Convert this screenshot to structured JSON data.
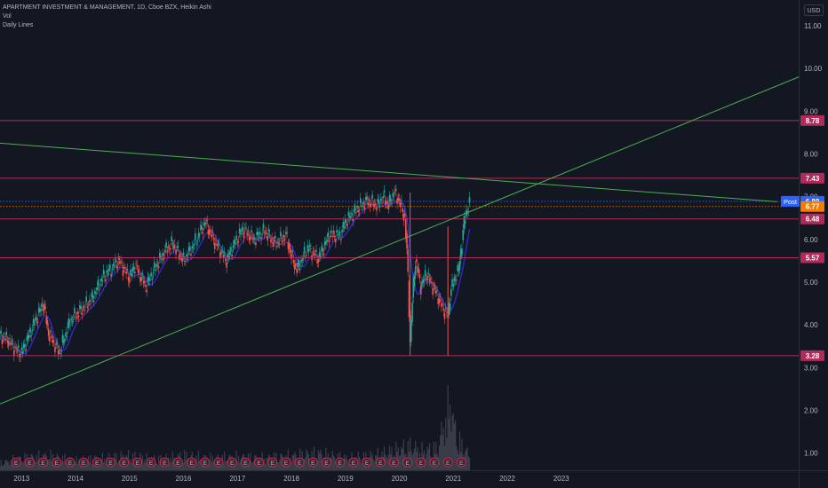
{
  "header": {
    "title": "APARTMENT INVESTMENT & MANAGEMENT, 1D, Cboe BZX, Heikin Ashi",
    "indicator_vol": "Vol",
    "indicator_lines": "Daily Lines",
    "currency": "USD"
  },
  "chart_data": {
    "type": "line",
    "chart_style": "Heikin Ashi candles with moving average and volume histogram",
    "y_axis": {
      "ticks": [
        "11.00",
        "10.00",
        "9.00",
        "8.00",
        "7.00",
        "6.00",
        "5.00",
        "4.00",
        "3.00",
        "2.00",
        "1.00"
      ],
      "range": [
        0.6,
        11.6
      ],
      "position": "right"
    },
    "x_axis": {
      "ticks": [
        "2013",
        "2014",
        "2015",
        "2016",
        "2017",
        "2018",
        "2019",
        "2020",
        "2021",
        "2022",
        "2023"
      ],
      "range_years": [
        2012.6,
        2027.4
      ]
    },
    "price_series": {
      "name": "",
      "x": [
        2012.6,
        2012.75,
        2012.9,
        2013.0,
        2013.2,
        2013.4,
        2013.5,
        2013.7,
        2013.9,
        2014.1,
        2014.3,
        2014.5,
        2014.8,
        2015.0,
        2015.1,
        2015.3,
        2015.5,
        2015.7,
        2015.8,
        2016.0,
        2016.2,
        2016.4,
        2016.6,
        2016.8,
        2016.9,
        2017.1,
        2017.3,
        2017.5,
        2017.7,
        2017.9,
        2018.0,
        2018.1,
        2018.3,
        2018.5,
        2018.7,
        2018.9,
        2019.0,
        2019.2,
        2019.4,
        2019.6,
        2019.7,
        2019.8,
        2019.9,
        2020.0,
        2020.1,
        2020.15,
        2020.2,
        2020.25,
        2020.3,
        2020.4,
        2020.5,
        2020.7,
        2020.8,
        2020.9,
        2020.95,
        2021.0,
        2021.1,
        2021.2,
        2021.25,
        2021.3
      ],
      "y": [
        3.75,
        3.65,
        3.4,
        3.35,
        3.95,
        4.5,
        3.8,
        3.35,
        4.1,
        4.35,
        4.6,
        5.1,
        5.5,
        5.1,
        5.4,
        4.9,
        5.4,
        5.8,
        5.9,
        5.5,
        5.9,
        6.4,
        5.9,
        5.5,
        5.8,
        6.25,
        6.0,
        6.2,
        5.9,
        6.1,
        5.6,
        5.3,
        5.8,
        5.55,
        6.1,
        6.1,
        6.4,
        6.7,
        6.9,
        6.8,
        7.0,
        6.8,
        7.1,
        6.9,
        6.5,
        5.5,
        3.6,
        4.8,
        5.5,
        4.9,
        5.2,
        4.7,
        4.4,
        4.2,
        4.8,
        5.0,
        5.3,
        6.4,
        6.7,
        6.8
      ]
    },
    "volume_series": {
      "name": "",
      "x": [
        2012.6,
        2013.0,
        2013.5,
        2014.0,
        2014.5,
        2015.0,
        2015.5,
        2016.0,
        2016.5,
        2017.0,
        2017.5,
        2018.0,
        2018.5,
        2019.0,
        2019.5,
        2019.9,
        2020.2,
        2020.4,
        2020.7,
        2020.9,
        2020.95,
        2021.0,
        2021.1,
        2021.3
      ],
      "y": [
        0.3,
        0.5,
        0.6,
        0.4,
        0.5,
        0.6,
        0.45,
        0.6,
        0.5,
        0.55,
        0.5,
        0.6,
        0.7,
        0.5,
        0.6,
        0.8,
        1.0,
        0.8,
        0.9,
        2.4,
        3.1,
        2.0,
        1.2,
        0.6
      ]
    },
    "horizontal_levels": [
      {
        "value": 8.78,
        "label": "8.78",
        "color": "#b22a5a"
      },
      {
        "value": 7.43,
        "label": "7.43",
        "color": "#b22a5a"
      },
      {
        "value": 6.48,
        "label": "6.48",
        "color": "#b22a5a"
      },
      {
        "value": 5.57,
        "label": "5.57",
        "color": "#b22a5a"
      },
      {
        "value": 3.28,
        "label": "3.28",
        "color": "#b22a5a"
      }
    ],
    "price_markers": [
      {
        "value": 6.89,
        "label": "6.89",
        "tag": "Post",
        "color": "#2962ff"
      },
      {
        "value": 6.77,
        "label": "6.77",
        "color": "#f57c00"
      }
    ],
    "trendlines": [
      {
        "from": [
          2012.6,
          8.25
        ],
        "to": [
          2027.0,
          6.88
        ],
        "color": "#4caf50"
      },
      {
        "from": [
          2012.6,
          2.15
        ],
        "to": [
          2027.4,
          9.8
        ],
        "color": "#4caf50"
      }
    ],
    "earnings_marker": "E",
    "earnings_x": [
      2012.9,
      2013.15,
      2013.4,
      2013.65,
      2013.9,
      2014.15,
      2014.4,
      2014.65,
      2014.9,
      2015.15,
      2015.4,
      2015.65,
      2015.9,
      2016.15,
      2016.4,
      2016.65,
      2016.9,
      2017.15,
      2017.4,
      2017.65,
      2017.9,
      2018.15,
      2018.4,
      2018.65,
      2018.9,
      2019.15,
      2019.4,
      2019.65,
      2019.9,
      2020.15,
      2020.4,
      2020.65,
      2020.9,
      2021.15
    ],
    "grid": false,
    "colors": {
      "background": "#131722",
      "candle_up": "#26a69a",
      "candle_down": "#ef5350",
      "moving_average": "#2a2ed0",
      "volume": "#5d606b",
      "axis_text": "#b2b5be"
    }
  }
}
